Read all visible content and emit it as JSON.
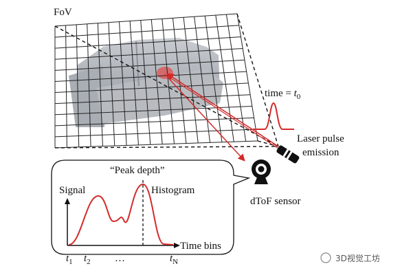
{
  "labels": {
    "fov": "FoV",
    "time": {
      "text": "time = ",
      "var": "t",
      "sub": "0"
    },
    "laser": [
      "Laser pulse",
      "emission"
    ],
    "sensor": "dToF sensor",
    "peak": "“Peak depth”",
    "signal": "Signal",
    "histogram": "Histogram",
    "time_bins": "Time bins",
    "bins": [
      {
        "var": "t",
        "sub": "1"
      },
      {
        "var": "t",
        "sub": "2"
      },
      {
        "var": "…",
        "sub": ""
      },
      {
        "var": "t",
        "sub": "N"
      }
    ],
    "watermark": "3D视觉工坊"
  }
}
